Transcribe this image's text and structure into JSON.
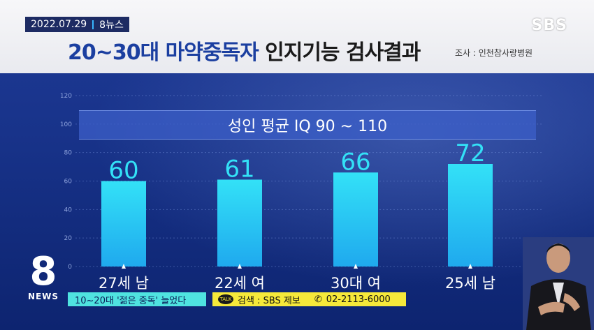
{
  "header": {
    "date": "2022.07.29",
    "program": "8뉴스",
    "broadcaster": "SBS",
    "title_highlight": "20~30대 마약중독자",
    "title_rest": " 인지기능 검사결과",
    "source": "조사 : 인천참사랑병원"
  },
  "chart_data": {
    "type": "bar",
    "categories": [
      "27세 남",
      "22세 여",
      "30대 여",
      "25세 남"
    ],
    "values": [
      60,
      61,
      66,
      72
    ],
    "data_labels": [
      "60",
      "61",
      "66",
      "72"
    ],
    "ylim": [
      0,
      120
    ],
    "yticks": [
      0,
      20,
      40,
      60,
      80,
      100,
      120
    ],
    "reference_band": {
      "label": "성인 평균 IQ 90 ~ 110",
      "from": 90,
      "to": 110
    },
    "title": "",
    "xlabel": "",
    "ylabel": "",
    "grid": true,
    "bar_color": "#33e1f7"
  },
  "footer": {
    "ticker": "10~20대 '젊은 중독' 늘었다",
    "report_prefix": "검색 : SBS 제보",
    "report_phone": "02-2113-6000",
    "talk_icon_text": "TALK",
    "news_number": "8",
    "news_word": "NEWS"
  },
  "icons": {
    "talk": "talk-bubble-icon",
    "phone": "phone-icon"
  },
  "colors": {
    "ticker_bg": "#4fe3e0",
    "report_bg": "#f6e93a",
    "header_accent": "#1b3fa0"
  }
}
